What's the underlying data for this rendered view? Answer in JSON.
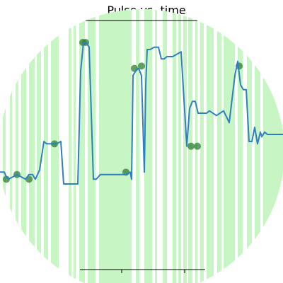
{
  "chart_data": {
    "type": "line",
    "title": "Pulse vs. time",
    "xlabel": "",
    "ylabel": "",
    "grid": false,
    "legend": "none",
    "series": [
      {
        "x": [
          0,
          6,
          9,
          12,
          18,
          24,
          30,
          36,
          41,
          46,
          50,
          56,
          62,
          66,
          72,
          80,
          86,
          90,
          96,
          101,
          106,
          110,
          114,
          118,
          122,
          126,
          132,
          136,
          142,
          150,
          160,
          170,
          178,
          184,
          186,
          188,
          192,
          196,
          200,
          204,
          206,
          208,
          212,
          218,
          224,
          228,
          232,
          236,
          244,
          256,
          264,
          268,
          272,
          276,
          280,
          286,
          292,
          296,
          306,
          316,
          324,
          332,
          336,
          340,
          344,
          348,
          352,
          356,
          360,
          364,
          368,
          370,
          374,
          378,
          382,
          390,
          400
        ],
        "y": [
          87,
          87,
          85,
          84,
          85,
          86,
          85,
          84,
          86,
          86,
          84,
          88,
          100,
          99,
          99,
          99,
          100,
          82,
          82,
          82,
          82,
          82,
          130,
          142,
          142,
          140,
          84,
          84,
          86,
          86,
          86,
          86,
          86,
          87,
          84,
          128,
          130,
          131,
          128,
          87,
          124,
          139,
          139,
          140,
          140,
          135,
          135,
          136,
          136,
          138,
          98,
          114,
          117,
          117,
          112,
          112,
          112,
          113,
          111,
          113,
          108,
          128,
          134,
          124,
          122,
          122,
          100,
          100,
          106,
          99,
          104,
          102,
          104,
          103,
          103,
          103,
          103
        ],
        "color": "#2f7fc1"
      }
    ],
    "markers": {
      "color": "#2e7d32",
      "points": [
        {
          "x": 9,
          "y": 84
        },
        {
          "x": 24,
          "y": 86
        },
        {
          "x": 41,
          "y": 84
        },
        {
          "x": 77,
          "y": 99
        },
        {
          "x": 117,
          "y": 142
        },
        {
          "x": 121,
          "y": 142
        },
        {
          "x": 178,
          "y": 87
        },
        {
          "x": 190,
          "y": 131
        },
        {
          "x": 200,
          "y": 132
        },
        {
          "x": 270,
          "y": 98
        },
        {
          "x": 279,
          "y": 98
        },
        {
          "x": 338,
          "y": 132
        }
      ]
    },
    "shading": {
      "color": "#c8f5c4",
      "spans": [
        [
          4,
          8
        ],
        [
          14,
          17
        ],
        [
          22,
          26
        ],
        [
          30,
          37
        ],
        [
          41,
          49
        ],
        [
          52,
          58
        ],
        [
          62,
          68
        ],
        [
          72,
          83
        ],
        [
          97,
          101
        ],
        [
          104,
          107
        ],
        [
          112,
          120
        ],
        [
          124,
          135
        ],
        [
          140,
          186
        ],
        [
          192,
          197
        ],
        [
          204,
          215
        ],
        [
          219,
          222
        ],
        [
          230,
          236
        ],
        [
          244,
          249
        ],
        [
          252,
          256
        ],
        [
          259,
          264
        ],
        [
          266,
          272
        ],
        [
          276,
          279
        ],
        [
          283,
          288
        ],
        [
          292,
          302
        ],
        [
          307,
          313
        ],
        [
          316,
          332
        ],
        [
          336,
          343
        ],
        [
          349,
          356
        ],
        [
          360,
          368
        ],
        [
          372,
          400
        ]
      ]
    },
    "xlim": [
      0,
      400
    ],
    "ylim": [
      40,
      160
    ],
    "xticks": [
      172,
      261
    ]
  }
}
